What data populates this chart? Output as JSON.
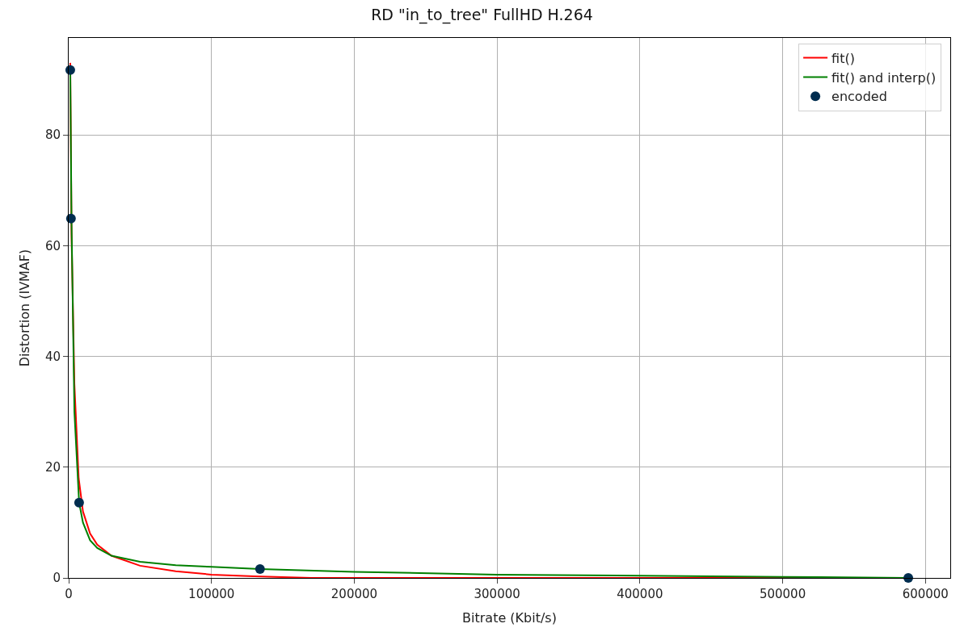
{
  "chart_data": {
    "type": "line",
    "title": "RD \"in_to_tree\" FullHD H.264",
    "xlabel": "Bitrate (Kbit/s)",
    "ylabel": "Distortion (IVMAF)",
    "xlim": [
      0,
      617400
    ],
    "xticks": [
      0,
      100000,
      200000,
      300000,
      400000,
      500000,
      600000
    ],
    "ylim": [
      0,
      97.5
    ],
    "yticks": [
      0,
      20,
      40,
      60,
      80
    ],
    "grid": true,
    "legend": "top right",
    "series": [
      {
        "name": "fit()",
        "color": "#ff0000",
        "x": [
          1100,
          2000,
          4000,
          7000,
          10000,
          15000,
          20000,
          30000,
          50000,
          75000,
          100000,
          130000,
          170000,
          250000,
          400000,
          588000
        ],
        "values": [
          93,
          62,
          35,
          18,
          12,
          8,
          6,
          4,
          2.2,
          1.2,
          0.6,
          0.3,
          0,
          0,
          0,
          0
        ]
      },
      {
        "name": "fit() and interp()",
        "color": "#008000",
        "x": [
          1100,
          2000,
          4000,
          7300,
          10000,
          15000,
          20000,
          30000,
          50000,
          75000,
          100000,
          134000,
          200000,
          300000,
          400000,
          500000,
          588000
        ],
        "values": [
          92,
          64,
          30,
          13.6,
          10,
          6.8,
          5.4,
          4.0,
          2.9,
          2.3,
          2.0,
          1.6,
          1.1,
          0.6,
          0.4,
          0.2,
          0
        ]
      },
      {
        "name": "encoded",
        "type": "scatter",
        "marker": "circle",
        "color": "#002d4f",
        "x": [
          1100,
          1600,
          7300,
          134000,
          588000
        ],
        "values": [
          91.7,
          64.9,
          13.6,
          1.6,
          0
        ]
      }
    ]
  }
}
